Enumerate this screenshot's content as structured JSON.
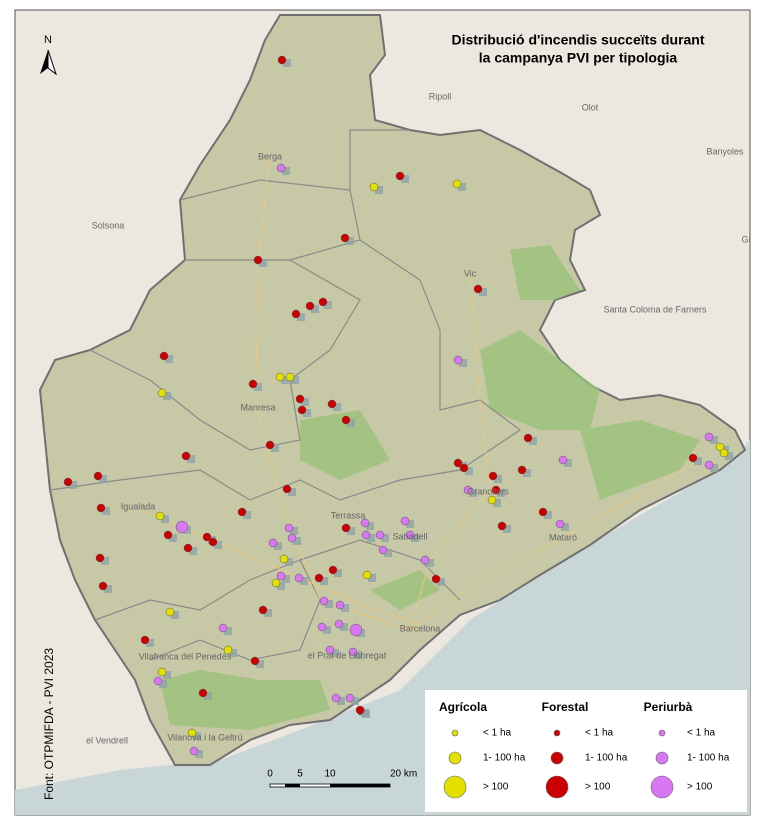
{
  "title": [
    "Distribució d'incendis succeïts durant",
    "la campanya PVI per tipologia"
  ],
  "north": "N",
  "source": "Font: OTPMIFDA - PVI 2023",
  "places": [
    "Berga",
    "Solsona",
    "Ripoll",
    "Olot",
    "Banyoles",
    "Gi",
    "Vic",
    "Santa Coloma de Farners",
    "Manresa",
    "Igualada",
    "Terrassa",
    "Sabadell",
    "Granollers",
    "Mataró",
    "Barcelona",
    "el Prat de Llobregat",
    "Vilafranca del Penedès",
    "el Vendrell",
    "Vilanova i la Geltrú"
  ],
  "legend": {
    "groups": [
      {
        "name": "Agrícola",
        "color": "#e3e000",
        "items": [
          "< 1 ha",
          "1- 100 ha",
          "> 100"
        ]
      },
      {
        "name": "Forestal",
        "color": "#cc0000",
        "items": [
          "< 1 ha",
          "1- 100 ha",
          "> 100"
        ]
      },
      {
        "name": "Periurbà",
        "color": "#d977f2",
        "items": [
          "< 1 ha",
          "1- 100 ha",
          "> 100"
        ]
      }
    ]
  },
  "scale": {
    "labels": [
      "0",
      "5",
      "10",
      "20 km"
    ]
  }
}
